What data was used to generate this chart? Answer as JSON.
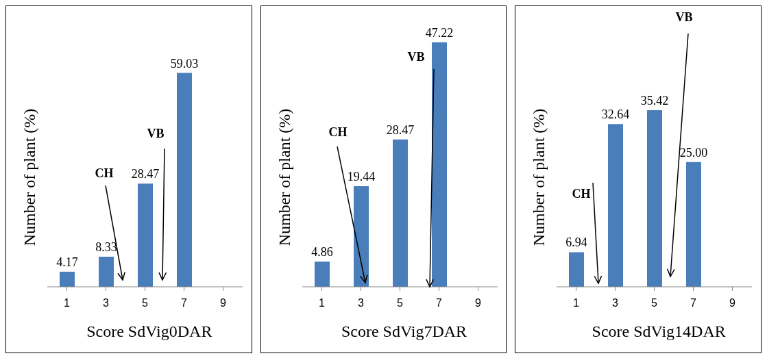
{
  "chart_data": [
    {
      "type": "bar",
      "categories": [
        "1",
        "3",
        "5",
        "7",
        "9"
      ],
      "values": [
        4.17,
        8.33,
        28.47,
        59.03,
        null
      ],
      "color": "#4a7ebb",
      "data_labels": true,
      "xlabel": "Score SdVig0DAR",
      "ylabel": "Number of plant (%)",
      "annotations": [
        "CH",
        "VB"
      ]
    },
    {
      "type": "bar",
      "categories": [
        "1",
        "3",
        "5",
        "7",
        "9"
      ],
      "values": [
        4.86,
        19.44,
        28.47,
        47.22,
        null
      ],
      "color": "#4a7ebb",
      "data_labels": true,
      "xlabel": "Score SdVig7DAR",
      "ylabel": "Number of plant (%)",
      "annotations": [
        "CH",
        "VB"
      ]
    },
    {
      "type": "bar",
      "categories": [
        "1",
        "3",
        "5",
        "7",
        "9"
      ],
      "values": [
        6.94,
        32.64,
        35.42,
        25.0,
        null
      ],
      "value_labels": [
        "6.94",
        "32.64",
        "35.42",
        "25.00",
        null
      ],
      "color": "#4a7ebb",
      "xlabel": "Score SdVig14DAR",
      "ylabel": "Number of plant (%)",
      "annotations": [
        "CH",
        "VB"
      ]
    }
  ]
}
